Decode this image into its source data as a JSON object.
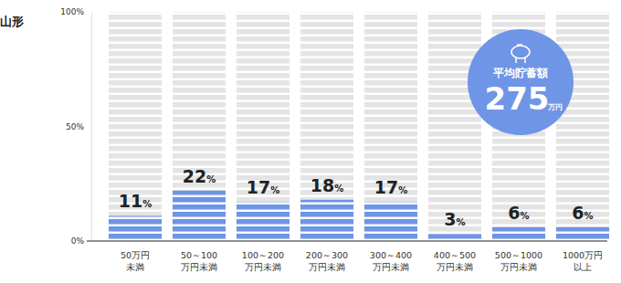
{
  "chart_data": {
    "type": "bar",
    "title": "山形",
    "categories": [
      "50万円\n未満",
      "50～100\n万円未満",
      "100～200\n万円未満",
      "200～300\n万円未満",
      "300～400\n万円未満",
      "400～500\n万円未満",
      "500～1000\n万円未満",
      "1000万円\n以上"
    ],
    "values": [
      11,
      22,
      17,
      18,
      17,
      3,
      6,
      6
    ],
    "value_labels": [
      "11%",
      "22%",
      "17%",
      "18%",
      "17%",
      "3%",
      "6%",
      "6%"
    ],
    "data_labels": true,
    "color": "#6f95e6",
    "ylim": [
      0,
      100
    ],
    "yticks": [
      {
        "value": 0,
        "label": "0%"
      },
      {
        "value": 50,
        "label": "50%"
      },
      {
        "value": 100,
        "label": "100%"
      }
    ],
    "annotation": {
      "title": "平均貯蓄額",
      "value": 275,
      "unit": "万円"
    }
  }
}
